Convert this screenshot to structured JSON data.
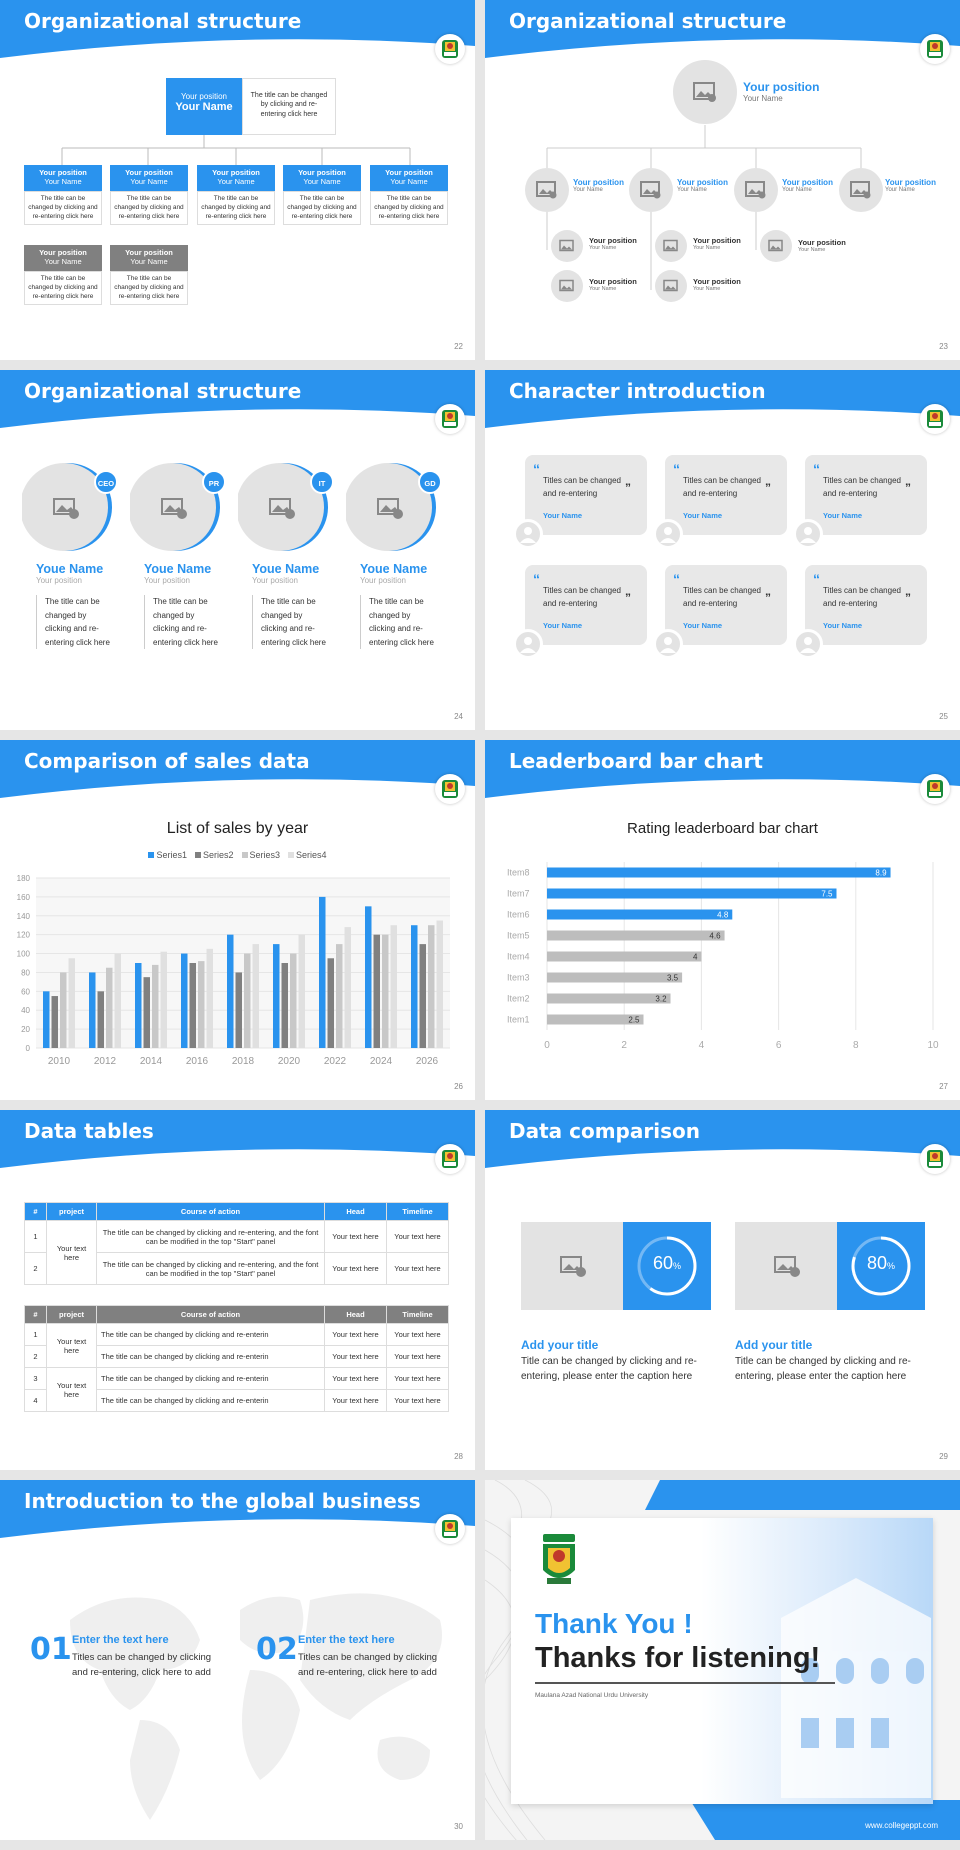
{
  "colors": {
    "primary": "#2a93ee",
    "gray": "#888888",
    "light_gray": "#bdbdbd"
  },
  "slides": {
    "s22": {
      "title": "Organizational structure",
      "page": "22",
      "top": {
        "position": "Your position",
        "name": "Your Name",
        "desc": "The title can be changed by clicking and re-entering click here"
      },
      "level2": [
        {
          "position": "Your position",
          "name": "Your Name",
          "desc": "The title can be changed by clicking and re-entering click here"
        },
        {
          "position": "Your position",
          "name": "Your Name",
          "desc": "The title can be changed by clicking and re-entering click here"
        },
        {
          "position": "Your position",
          "name": "Your Name",
          "desc": "The title can be changed by clicking and re-entering click here"
        },
        {
          "position": "Your position",
          "name": "Your Name",
          "desc": "The title can be changed by clicking and re-entering click here"
        },
        {
          "position": "Your position",
          "name": "Your Name",
          "desc": "The title can be changed by clicking and re-entering click here"
        }
      ],
      "level3": [
        {
          "position": "Your position",
          "name": "Your Name",
          "desc": "The title can be changed by clicking and re-entering click here"
        },
        {
          "position": "Your position",
          "name": "Your Name",
          "desc": "The title can be changed by clicking and re-entering click here"
        }
      ]
    },
    "s23": {
      "title": "Organizational structure",
      "page": "23",
      "top": {
        "position": "Your position",
        "name": "Your Name"
      },
      "level2": [
        {
          "position": "Your position",
          "name": "Your Name"
        },
        {
          "position": "Your position",
          "name": "Your Name"
        },
        {
          "position": "Your position",
          "name": "Your Name"
        },
        {
          "position": "Your position",
          "name": "Your Name"
        }
      ],
      "level3": [
        {
          "position": "Your position",
          "name": "Your Name"
        },
        {
          "position": "Your position",
          "name": "Your Name"
        },
        {
          "position": "Your position",
          "name": "Your Name"
        },
        {
          "position": "Your position",
          "name": "Your Name"
        },
        {
          "position": "Your position",
          "name": "Your Name"
        }
      ]
    },
    "s24": {
      "title": "Organizational structure",
      "page": "24",
      "people": [
        {
          "badge": "CEO",
          "name": "Youe Name",
          "position": "Your position",
          "desc": "The title can be changed by clicking and re-entering click here"
        },
        {
          "badge": "PR",
          "name": "Youe Name",
          "position": "Your position",
          "desc": "The title can be changed by clicking and re-entering click here"
        },
        {
          "badge": "IT",
          "name": "Youe Name",
          "position": "Your position",
          "desc": "The title can be changed by clicking and re-entering click here"
        },
        {
          "badge": "GD",
          "name": "Youe Name",
          "position": "Your position",
          "desc": "The title can be changed by clicking and re-entering click here"
        }
      ]
    },
    "s25": {
      "title": "Character introduction",
      "page": "25",
      "cards": [
        {
          "quote": "Titles can be changed and re-entering",
          "name": "Your Name"
        },
        {
          "quote": "Titles can be changed and re-entering",
          "name": "Your Name"
        },
        {
          "quote": "Titles can be changed and re-entering",
          "name": "Your Name"
        },
        {
          "quote": "Titles can be changed and re-entering",
          "name": "Your Name"
        },
        {
          "quote": "Titles can be changed and re-entering",
          "name": "Your Name"
        },
        {
          "quote": "Titles can be changed and re-entering",
          "name": "Your Name"
        }
      ]
    },
    "s26": {
      "title": "Comparison of sales data",
      "page": "26"
    },
    "s27": {
      "title": "Leaderboard bar chart",
      "page": "27"
    },
    "s28": {
      "title": "Data tables",
      "page": "28",
      "headers": [
        "#",
        "project",
        "Course of action",
        "Head",
        "Timeline"
      ],
      "table1": {
        "project": "Your text here",
        "rows": [
          {
            "n": "1",
            "action": "The title can be changed by clicking and re-entering, and the font can be modified in the top \"Start\" panel",
            "head": "Your text here",
            "time": "Your text here"
          },
          {
            "n": "2",
            "action": "The title can be changed by clicking and re-entering, and the font can be modified in the top \"Start\" panel",
            "head": "Your text here",
            "time": "Your text here"
          }
        ]
      },
      "table2": {
        "projects": [
          "Your text here",
          "Your text here"
        ],
        "rows": [
          {
            "n": "1",
            "action": "The title can be changed by clicking and re-enterin",
            "head": "Your text here",
            "time": "Your text here"
          },
          {
            "n": "2",
            "action": "The title can be changed by clicking and re-enterin",
            "head": "Your text here",
            "time": "Your text here"
          },
          {
            "n": "3",
            "action": "The title can be changed by clicking and re-enterin",
            "head": "Your text here",
            "time": "Your text here"
          },
          {
            "n": "4",
            "action": "The title can be changed by clicking and re-enterin",
            "head": "Your text here",
            "time": "Your text here"
          }
        ]
      }
    },
    "s29": {
      "title": "Data comparison",
      "page": "29",
      "items": [
        {
          "value": "60",
          "unit": "%",
          "percent": 60,
          "title": "Add your title",
          "desc": "Title can be changed by clicking and re-entering, please enter the caption here"
        },
        {
          "value": "80",
          "unit": "%",
          "percent": 80,
          "title": "Add your title",
          "desc": "Title can be changed by clicking and re-entering, please enter the caption here"
        }
      ]
    },
    "s30": {
      "title": "Introduction to the global business",
      "page": "30",
      "items": [
        {
          "num": "01",
          "heading": "Enter the text here",
          "desc": "Titles can be changed by clicking and re-entering, click here to add"
        },
        {
          "num": "02",
          "heading": "Enter the text here",
          "desc": "Titles can be changed by clicking and re-entering, click here to add"
        }
      ]
    },
    "s31": {
      "thank": "Thank You !",
      "thanks": "Thanks for listening!",
      "university": "Maulana Azad National Urdu University",
      "site": "www.collegeppt.com"
    }
  },
  "chart_data": [
    {
      "type": "bar",
      "title": "List of sales by year",
      "categories": [
        "2010",
        "2012",
        "2014",
        "2016",
        "2018",
        "2020",
        "2022",
        "2024",
        "2026"
      ],
      "series": [
        {
          "name": "Series1",
          "color": "#2a93ee",
          "values": [
            60,
            80,
            90,
            100,
            120,
            110,
            160,
            150,
            130
          ]
        },
        {
          "name": "Series2",
          "color": "#808080",
          "values": [
            55,
            60,
            75,
            90,
            80,
            90,
            95,
            120,
            110
          ]
        },
        {
          "name": "Series3",
          "color": "#c8c8c8",
          "values": [
            80,
            85,
            88,
            92,
            100,
            100,
            110,
            120,
            130
          ]
        },
        {
          "name": "Series4",
          "color": "#e0e0e0",
          "values": [
            95,
            100,
            102,
            105,
            110,
            120,
            128,
            130,
            135
          ]
        }
      ],
      "ylim": [
        0,
        180
      ],
      "yticks": [
        0,
        20,
        40,
        60,
        80,
        100,
        120,
        140,
        160,
        180
      ],
      "legend": "top"
    },
    {
      "type": "bar",
      "orientation": "horizontal",
      "title": "Rating leaderboard bar chart",
      "categories": [
        "Item8",
        "Item7",
        "Item6",
        "Item5",
        "Item4",
        "Item3",
        "Item2",
        "Item1"
      ],
      "values": [
        8.9,
        7.5,
        4.8,
        4.6,
        4,
        3.5,
        3.2,
        2.5
      ],
      "labels": [
        "8.9",
        "7.5",
        "4.8",
        "4.6",
        "4",
        "3.5",
        "3.2",
        "2.5"
      ],
      "highlight_count": 3,
      "xlim": [
        0,
        10
      ],
      "xticks": [
        0,
        2,
        4,
        6,
        8,
        10
      ]
    }
  ]
}
